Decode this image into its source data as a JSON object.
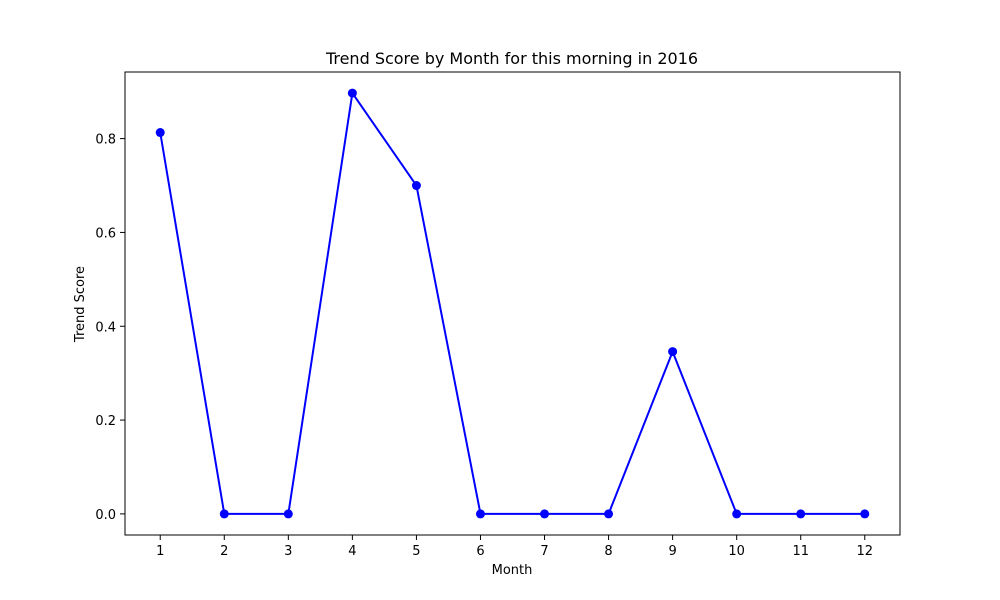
{
  "chart_data": {
    "type": "line",
    "title": "Trend Score by Month for this morning in 2016",
    "xlabel": "Month",
    "ylabel": "Trend Score",
    "x": [
      1,
      2,
      3,
      4,
      5,
      6,
      7,
      8,
      9,
      10,
      11,
      12
    ],
    "series": [
      {
        "values": [
          0.813,
          0.0,
          0.0,
          0.897,
          0.7,
          0.0,
          0.0,
          0.0,
          0.346,
          0.0,
          0.0,
          0.0
        ],
        "color": "#0000ff",
        "marker": "circle"
      }
    ],
    "xlim": [
      0.45,
      12.55
    ],
    "ylim": [
      -0.045,
      0.942
    ],
    "yticks": [
      0.0,
      0.2,
      0.4,
      0.6,
      0.8
    ],
    "ytick_labels": [
      "0.0",
      "0.2",
      "0.4",
      "0.6",
      "0.8"
    ],
    "xtick_labels": [
      "1",
      "2",
      "3",
      "4",
      "5",
      "6",
      "7",
      "8",
      "9",
      "10",
      "11",
      "12"
    ],
    "grid": false,
    "legend": "none"
  }
}
